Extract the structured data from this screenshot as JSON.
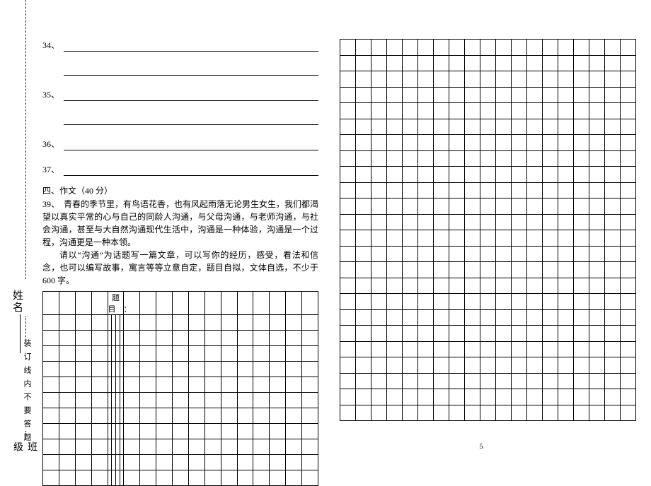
{
  "sidebar": {
    "name_label": "姓名",
    "class_label": "班级",
    "binding_note": "装订线内不要答题"
  },
  "questions": {
    "q34": "34、",
    "q35": "35、",
    "q36": "36、",
    "q37": "37、"
  },
  "essay": {
    "section": "四、作文（40 分）",
    "prompt_l1": "39、　青春的季节里，有鸟语花香，也有风起雨落无论男生女生，我们都渴望以真实平常的心与自己的同龄人沟通，与父母沟通，与老师沟通，与社会沟通，甚至与大自然沟通现代生活中，沟通是一种体验，沟通是一个过程，沟通更是一种本领。",
    "prompt_l2": "请以“沟通”为话题写一篇文章，可以写你的经历，感受，看法和信念，也可以编写故事，寓言等等立意自定，题目自拟，文体自选，不少于 600 字。",
    "title_label": "题　目　："
  },
  "grids": {
    "left_cols": 20,
    "left_rows": 12,
    "right_cols": 19,
    "right_rows": 24
  },
  "page_number": "5",
  "colors": {
    "line": "#000000",
    "bg": "#ffffff"
  }
}
